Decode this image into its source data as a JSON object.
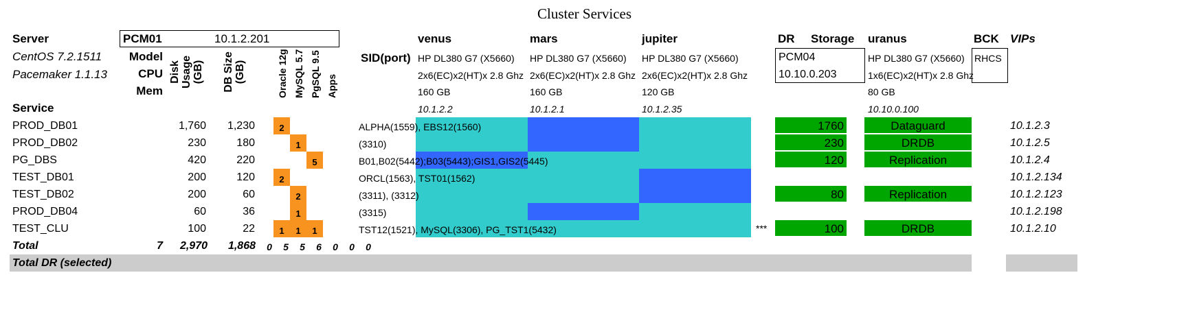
{
  "title": "Cluster Services",
  "colors": {
    "cyan": "#33CCCC",
    "blue": "#3366FF",
    "green": "#00A600",
    "orange": "#F7931E",
    "grey": "#CCCCCC"
  },
  "header": {
    "server_label": "Server",
    "os": "CentOS 7.2.1511",
    "pacemaker": "Pacemaker 1.1.13",
    "model_label": "Model",
    "cpu_label": "CPU",
    "mem_label": "Mem",
    "cluster_name": "PCM01",
    "cluster_ip": "10.1.2.201",
    "disk_usage_label": "Disk Usage (GB)",
    "db_size_label": "DB Size (GB)",
    "app_cols": [
      "Oracle 12g",
      "MySQL 5.7",
      "PgSQL 9.5",
      "Apps"
    ],
    "sid_label": "SID(port)",
    "service_label": "Service",
    "dr_label": "DR",
    "storage_label": "Storage",
    "bck_label": "BCK",
    "vips_label": "VIPs",
    "dr_box": [
      "PCM04",
      "10.10.0.203"
    ],
    "bck_box": "RHCS"
  },
  "nodes": [
    {
      "name": "venus",
      "model": "HP DL380 G7 (X5660)",
      "cpu": "2x6(EC)x2(HT)x 2.8 Ghz",
      "mem": "160 GB",
      "ip": "10.1.2.2"
    },
    {
      "name": "mars",
      "model": "HP DL380 G7 (X5660)",
      "cpu": "2x6(EC)x2(HT)x 2.8 Ghz",
      "mem": "160 GB",
      "ip": "10.1.2.1"
    },
    {
      "name": "jupiter",
      "model": "HP DL380 G7 (X5660)",
      "cpu": "2x6(EC)x2(HT)x 2.8 Ghz",
      "mem": "120 GB",
      "ip": "10.1.2.35"
    },
    {
      "name": "uranus",
      "model": "HP DL380 G7 (X5660)",
      "cpu": "1x6(EC)x2(HT)x 2.8 Ghz",
      "mem": "80 GB",
      "ip": "10.10.0.100"
    }
  ],
  "services": [
    {
      "name": "PROD_DB01",
      "disk": "1,760",
      "db": "1,230",
      "apps": [
        "2",
        "",
        "",
        ""
      ],
      "sid": "ALPHA(1559), EBS12(1560)",
      "blue": [
        false,
        true,
        false
      ],
      "storage": "1760",
      "dr": "Dataguard",
      "vip": "10.1.2.3"
    },
    {
      "name": "PROD_DB02",
      "disk": "230",
      "db": "180",
      "apps": [
        "",
        "1",
        "",
        ""
      ],
      "sid": "(3310)",
      "blue": [
        false,
        true,
        false
      ],
      "storage": "230",
      "dr": "DRDB",
      "vip": "10.1.2.5"
    },
    {
      "name": "PG_DBS",
      "disk": "420",
      "db": "220",
      "apps": [
        "",
        "",
        "5",
        ""
      ],
      "sid": "B01,B02(5442);B03(5443);GIS1,GIS2(5445)",
      "blue": [
        true,
        false,
        false
      ],
      "storage": "120",
      "dr": "Replication",
      "vip": "10.1.2.4"
    },
    {
      "name": "TEST_DB01",
      "disk": "200",
      "db": "120",
      "apps": [
        "2",
        "",
        "",
        ""
      ],
      "sid": "ORCL(1563), TST01(1562)",
      "blue": [
        false,
        false,
        true
      ],
      "storage": "",
      "dr": "",
      "vip": "10.1.2.134"
    },
    {
      "name": "TEST_DB02",
      "disk": "200",
      "db": "60",
      "apps": [
        "",
        "2",
        "",
        ""
      ],
      "sid": "(3311), (3312)",
      "blue": [
        false,
        false,
        true
      ],
      "storage": "80",
      "dr": "Replication",
      "vip": "10.1.2.123"
    },
    {
      "name": "PROD_DB04",
      "disk": "60",
      "db": "36",
      "apps": [
        "",
        "1",
        "",
        ""
      ],
      "sid": "(3315)",
      "blue": [
        false,
        true,
        false
      ],
      "storage": "",
      "dr": "",
      "vip": "10.1.2.198"
    },
    {
      "name": "TEST_CLU",
      "disk": "100",
      "db": "22",
      "apps": [
        "1",
        "1",
        "1",
        ""
      ],
      "sid": "TST12(1521), MySQL(3306), PG_TST1(5432)",
      "blue": [
        false,
        false,
        false
      ],
      "marker": "***",
      "storage": "100",
      "dr": "DRDB",
      "vip": "10.1.2.10"
    }
  ],
  "total": {
    "label": "Total",
    "count": "7",
    "disk": "2,970",
    "db": "1,868",
    "apps": [
      "0",
      "5",
      "5",
      "6",
      "0",
      "0",
      "0"
    ]
  },
  "total_dr": "Total DR (selected)"
}
